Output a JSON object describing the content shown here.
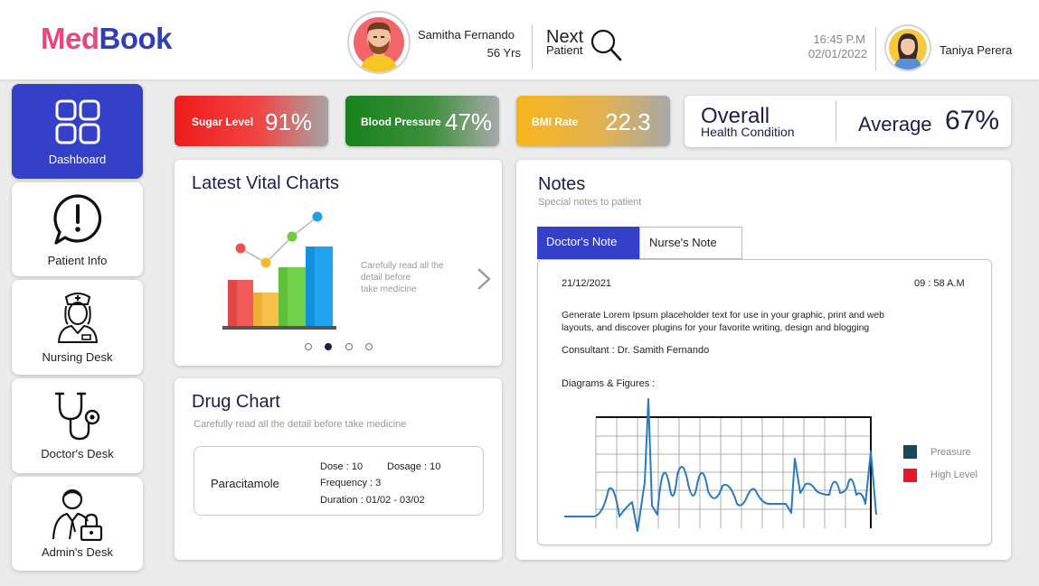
{
  "header": {
    "logo_part1": "Med",
    "logo_part2": "Book",
    "patient_name": "Samitha Fernando",
    "patient_age": "56 Yrs",
    "next_label": "Next",
    "next_sub": "Patient",
    "time": "16:45 P.M",
    "date": "02/01/2022",
    "user_name": "Taniya Perera"
  },
  "sidebar": {
    "items": [
      {
        "label": "Dashboard",
        "icon": "dashboard-grid-icon",
        "active": true
      },
      {
        "label": "Patient Info",
        "icon": "alert-chat-icon",
        "active": false
      },
      {
        "label": "Nursing Desk",
        "icon": "nurse-icon",
        "active": false
      },
      {
        "label": "Doctor's Desk",
        "icon": "stethoscope-icon",
        "active": false
      },
      {
        "label": "Admin's Desk",
        "icon": "admin-lock-icon",
        "active": false
      }
    ]
  },
  "stats": {
    "sugar": {
      "label": "Sugar Level",
      "value": "91%"
    },
    "bp": {
      "label": "Blood Pressure",
      "value": "47%"
    },
    "bmi": {
      "label": "BMI Rate",
      "value": "22.3"
    },
    "overall": {
      "title": "Overall",
      "subtitle": "Health Condition",
      "label": "Average",
      "value": "67%"
    }
  },
  "vitals": {
    "title": "Latest Vital Charts",
    "caption_line1": "Carefully read all the",
    "caption_line2": "detail before",
    "caption_line3": "take medicine",
    "slides": 4,
    "active_slide": 1
  },
  "drug_chart": {
    "title": "Drug Chart",
    "subtitle": "Carefully read all the detail before take medicine",
    "drug_name": "Paracitamole",
    "dose": "Dose : 10",
    "dosage": "Dosage : 10",
    "frequency": "Frequency : 3",
    "duration": "Duration : 01/02 - 03/02"
  },
  "notes": {
    "title": "Notes",
    "subtitle": "Special notes to patient",
    "tabs": [
      "Doctor's Note",
      "Nurse's Note"
    ],
    "active_tab": 0,
    "date": "21/12/2021",
    "time": "09 : 58 A.M",
    "body_line1": "Generate Lorem Ipsum placeholder text for use in your graphic, print and web",
    "body_line2": "layouts, and discover plugins for your favorite writing, design and blogging",
    "consultant": "Consultant : Dr. Samith Fernando",
    "figures_label": "Diagrams & Figures :",
    "legend": [
      {
        "label": "Preasure",
        "color": "#15495a"
      },
      {
        "label": "High Level",
        "color": "#e8162a"
      }
    ]
  },
  "colors": {
    "brand_pink": "#e8467c",
    "brand_blue": "#2f3fb3",
    "accent": "#3440c8",
    "ecg_line": "#2a7bbd"
  }
}
